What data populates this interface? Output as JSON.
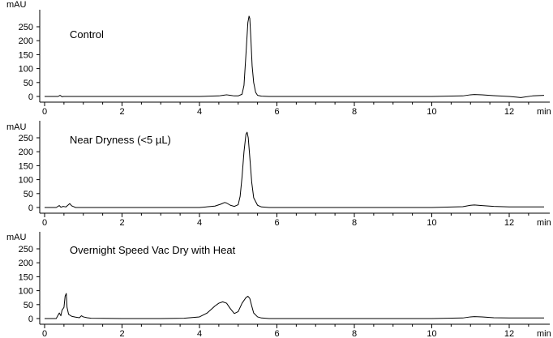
{
  "chart_data": [
    {
      "type": "line",
      "title": "Control",
      "ylabel": "mAU",
      "xlabel": "min",
      "xlim": [
        -0.1,
        13.0
      ],
      "ylim": [
        -8,
        300
      ],
      "xticks": [
        0,
        2,
        4,
        6,
        8,
        10,
        12
      ],
      "yticks": [
        0,
        50,
        100,
        150,
        200,
        250
      ],
      "grid": false,
      "line_color": "#000000",
      "series": [
        {
          "x": [
            0,
            0.35,
            0.4,
            0.45,
            0.5,
            1.0,
            2.0,
            3.0,
            4.0,
            4.5,
            4.6,
            4.7,
            4.8,
            4.9,
            5.0,
            5.1,
            5.15,
            5.2,
            5.25,
            5.28,
            5.3,
            5.33,
            5.36,
            5.4,
            5.45,
            5.5,
            5.6,
            5.8,
            6.0,
            7.0,
            8.0,
            9.0,
            10.0,
            10.8,
            11.0,
            11.1,
            11.3,
            11.6,
            12.0,
            12.3,
            12.6,
            12.9
          ],
          "y": [
            0,
            0,
            4,
            -1,
            0,
            0,
            0,
            0,
            0,
            2,
            4,
            6,
            4,
            2,
            2,
            8,
            40,
            150,
            265,
            288,
            280,
            200,
            110,
            50,
            15,
            4,
            1,
            0,
            0,
            0,
            0,
            0,
            0,
            2,
            6,
            7,
            6,
            3,
            0,
            -4,
            2,
            4
          ]
        }
      ]
    },
    {
      "type": "line",
      "title": "Near Dryness (<5 µL)",
      "ylabel": "mAU",
      "xlabel": "min",
      "xlim": [
        -0.1,
        13.0
      ],
      "ylim": [
        -8,
        300
      ],
      "xticks": [
        0,
        2,
        4,
        6,
        8,
        10,
        12
      ],
      "yticks": [
        0,
        50,
        100,
        150,
        200,
        250
      ],
      "grid": false,
      "line_color": "#000000",
      "series": [
        {
          "x": [
            0,
            0.3,
            0.38,
            0.42,
            0.48,
            0.55,
            0.6,
            0.65,
            0.7,
            0.75,
            0.8,
            1.0,
            2.0,
            3.0,
            4.0,
            4.4,
            4.55,
            4.65,
            4.7,
            4.8,
            4.9,
            5.0,
            5.05,
            5.1,
            5.15,
            5.2,
            5.23,
            5.26,
            5.3,
            5.35,
            5.4,
            5.5,
            5.6,
            5.8,
            6.0,
            7.0,
            8.0,
            9.0,
            10.0,
            10.8,
            11.0,
            11.1,
            11.3,
            11.6,
            12.0,
            12.9
          ],
          "y": [
            0,
            0,
            7,
            1,
            4,
            2,
            8,
            14,
            6,
            3,
            0,
            0,
            0,
            0,
            0,
            5,
            12,
            18,
            16,
            8,
            4,
            10,
            40,
            110,
            200,
            262,
            270,
            250,
            180,
            90,
            35,
            8,
            2,
            0,
            0,
            0,
            0,
            0,
            0,
            3,
            8,
            9,
            7,
            4,
            2,
            2
          ]
        }
      ]
    },
    {
      "type": "line",
      "title": "Overnight Speed Vac Dry with Heat",
      "ylabel": "mAU",
      "xlabel": "min",
      "xlim": [
        -0.1,
        13.0
      ],
      "ylim": [
        -8,
        300
      ],
      "xticks": [
        0,
        2,
        4,
        6,
        8,
        10,
        12
      ],
      "yticks": [
        0,
        50,
        100,
        150,
        200,
        250
      ],
      "grid": false,
      "line_color": "#000000",
      "series": [
        {
          "x": [
            0,
            0.3,
            0.38,
            0.42,
            0.45,
            0.5,
            0.53,
            0.56,
            0.58,
            0.62,
            0.7,
            0.8,
            0.9,
            0.95,
            1.0,
            1.1,
            1.2,
            2.0,
            3.0,
            3.6,
            4.0,
            4.2,
            4.4,
            4.5,
            4.6,
            4.7,
            4.8,
            4.9,
            5.0,
            5.1,
            5.2,
            5.25,
            5.3,
            5.35,
            5.4,
            5.5,
            5.6,
            5.8,
            6.0,
            7.0,
            8.0,
            9.0,
            10.0,
            10.8,
            11.0,
            11.1,
            11.3,
            11.6,
            12.0,
            12.9
          ],
          "y": [
            0,
            0,
            20,
            10,
            30,
            40,
            80,
            90,
            40,
            15,
            8,
            5,
            3,
            10,
            6,
            3,
            1,
            0,
            0,
            1,
            6,
            20,
            45,
            55,
            60,
            55,
            35,
            18,
            25,
            55,
            75,
            80,
            72,
            45,
            20,
            6,
            2,
            0,
            0,
            0,
            0,
            0,
            0,
            2,
            6,
            7,
            6,
            3,
            2,
            2
          ]
        }
      ]
    }
  ]
}
